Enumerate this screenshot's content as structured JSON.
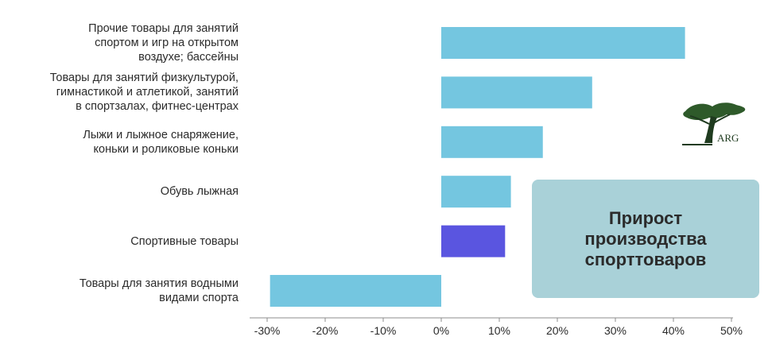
{
  "chart_data": {
    "type": "bar",
    "orientation": "horizontal",
    "categories": [
      "Прочие товары для занятий\nспортом и игр на открытом\nвоздухе; бассейны",
      "Товары для занятий физкультурой,\nгимнастикой и атлетикой, занятий\nв спортзалах, фитнес-центрах",
      "Лыжи и лыжное снаряжение,\nконьки и роликовые коньки",
      "Обувь лыжная",
      "Спортивные товары",
      "Товары для занятия водными\nвидами спорта"
    ],
    "values": [
      42,
      26,
      17.5,
      12,
      11,
      -29.5
    ],
    "bar_colors": [
      "#74c6e0",
      "#74c6e0",
      "#74c6e0",
      "#74c6e0",
      "#5a55e0",
      "#74c6e0"
    ],
    "xlim": [
      -32,
      50
    ],
    "ticks": [
      -30,
      -20,
      -10,
      0,
      10,
      20,
      30,
      40,
      50
    ],
    "tick_labels": [
      "-30%",
      "-20%",
      "-10%",
      "0%",
      "10%",
      "20%",
      "30%",
      "40%",
      "50%"
    ],
    "annotation": "Прирост\nпроизводства\nспорттоваров",
    "grid": false
  },
  "logo": {
    "text": "ARG",
    "icon": "tree-icon"
  }
}
